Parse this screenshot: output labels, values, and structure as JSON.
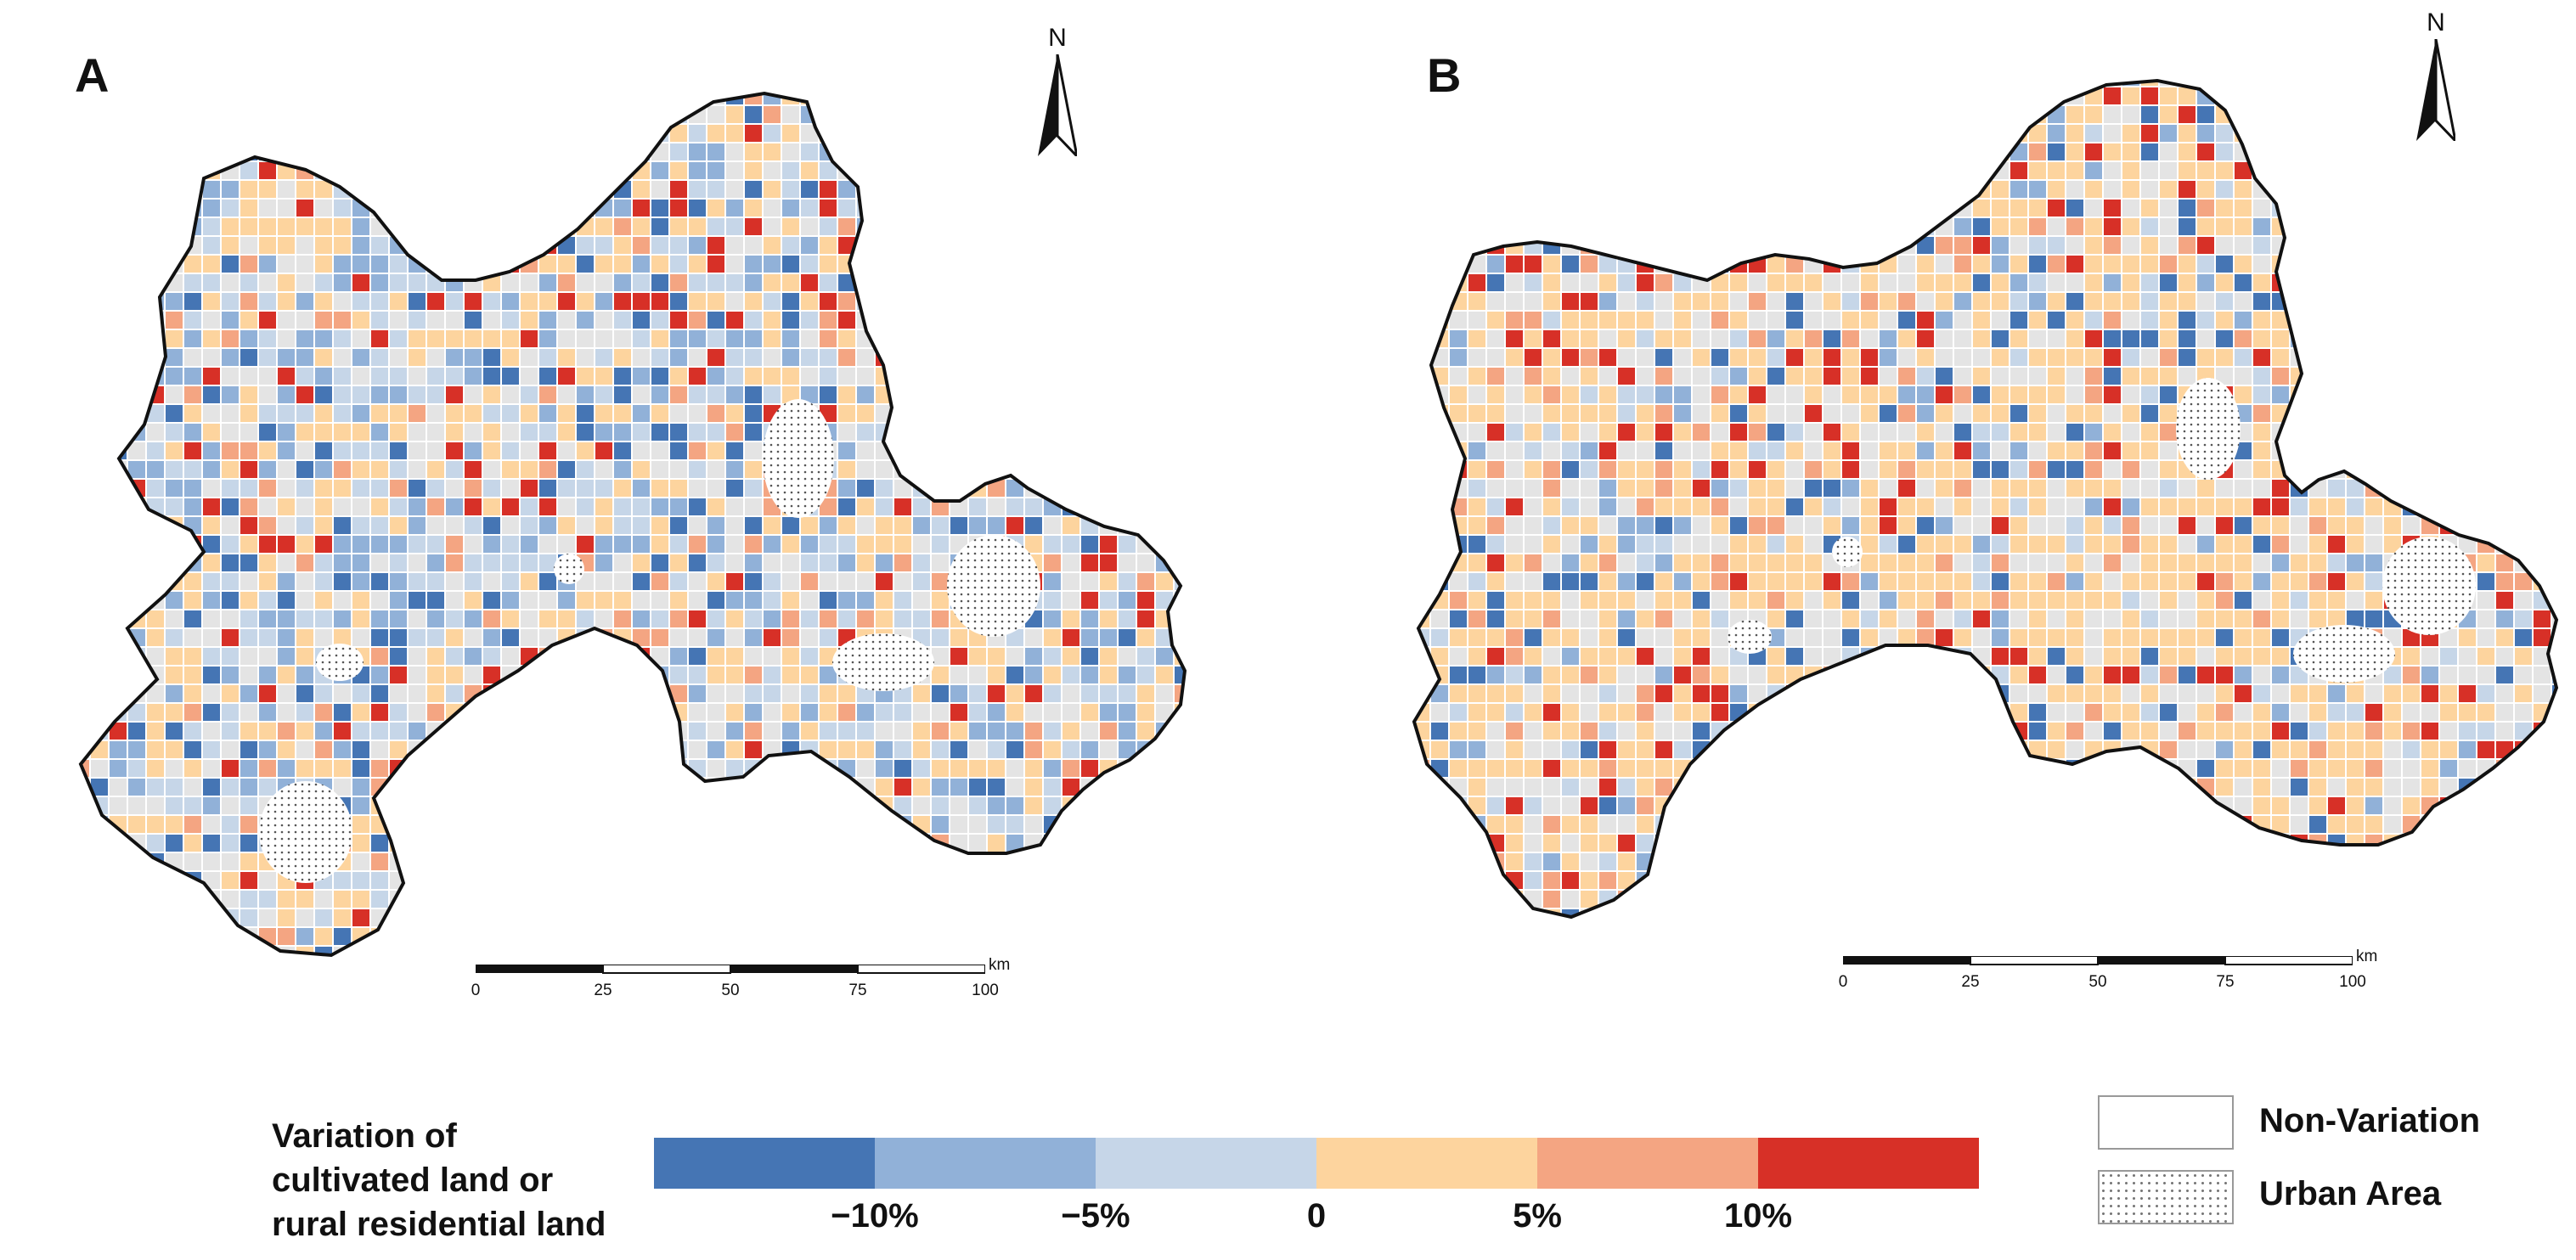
{
  "panels": [
    {
      "letter": "A",
      "north_label": "N",
      "scale": {
        "ticks": [
          "0",
          "25",
          "50",
          "75",
          "100"
        ],
        "unit": "km"
      }
    },
    {
      "letter": "B",
      "north_label": "N",
      "scale": {
        "ticks": [
          "0",
          "25",
          "50",
          "75",
          "100"
        ],
        "unit": "km"
      }
    }
  ],
  "legend": {
    "title_lines": [
      "Variation of",
      "cultivated land or",
      "rural residential land"
    ],
    "ramp_colors": [
      "#4575b4",
      "#91b1d8",
      "#c6d6e8",
      "#fdd49e",
      "#f4a582",
      "#d73027"
    ],
    "ramp_labels": [
      "−10%",
      "−5%",
      "0",
      "5%",
      "10%"
    ],
    "non_variation_label": "Non-Variation",
    "urban_label": "Urban Area",
    "non_variation_color": "#e4e4e4"
  }
}
